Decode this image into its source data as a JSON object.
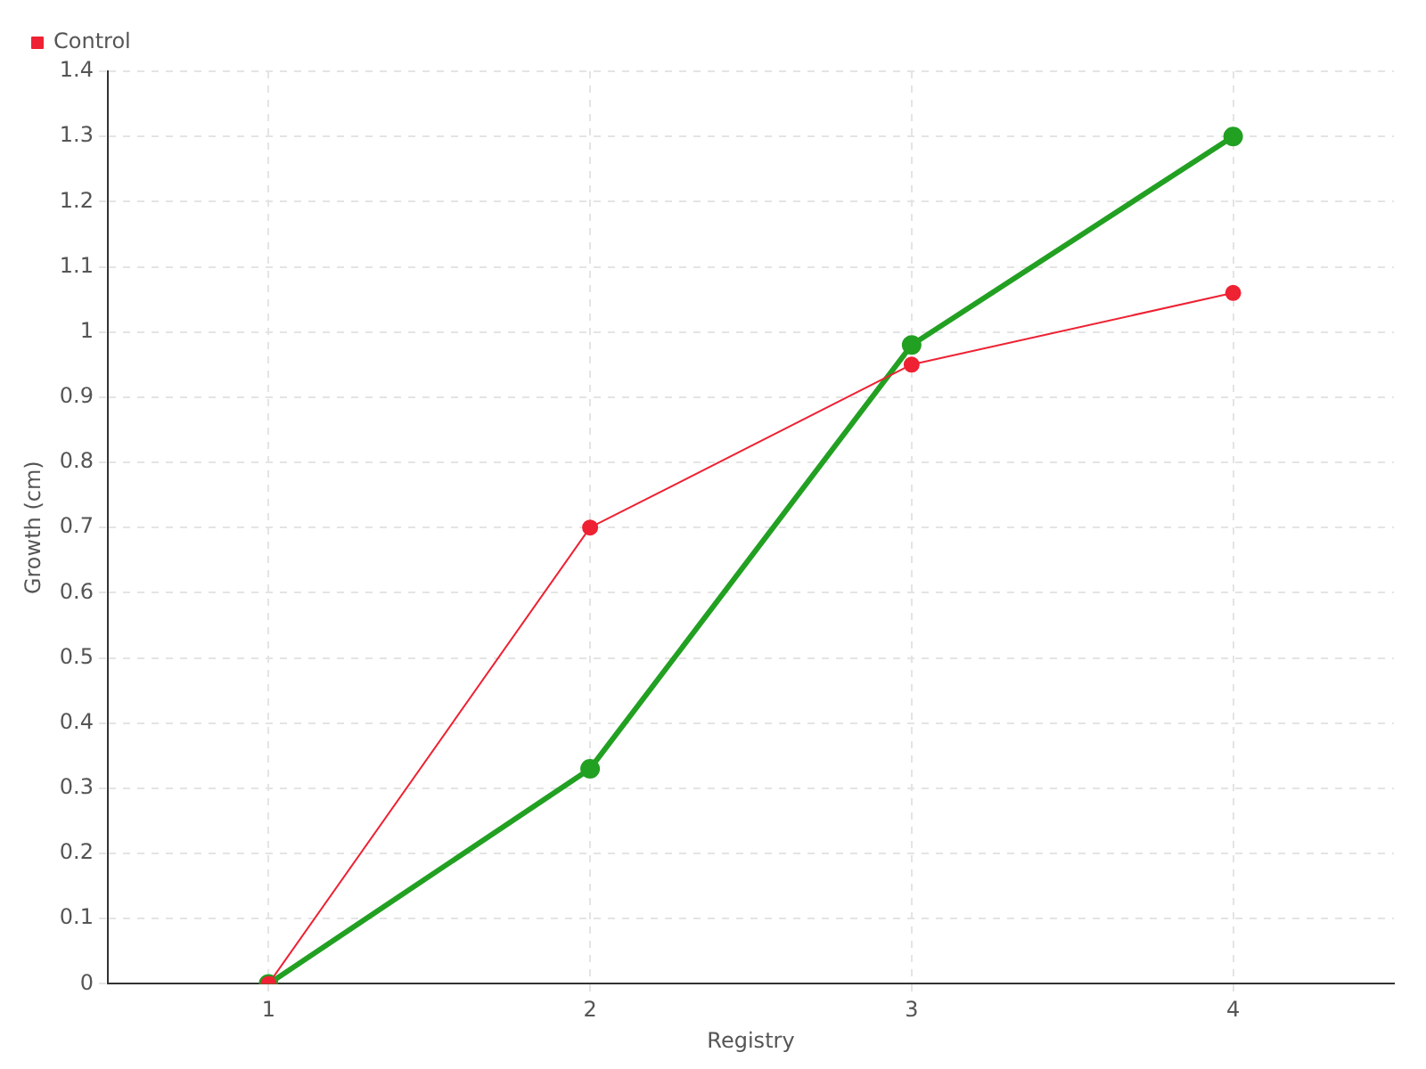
{
  "chart_data": {
    "type": "line",
    "xlabel": "Registry",
    "ylabel": "Growth (cm)",
    "x": [
      1,
      2,
      3,
      4
    ],
    "xlim": [
      0.5,
      4.5
    ],
    "xticks": [
      1,
      2,
      3,
      4
    ],
    "ylim": [
      0,
      1.4
    ],
    "yticks": [
      0,
      0.1,
      0.2,
      0.3,
      0.4,
      0.5,
      0.6,
      0.7,
      0.8,
      0.9,
      1,
      1.1,
      1.2,
      1.3,
      1.4
    ],
    "series": [
      {
        "color": "#22a022",
        "values": [
          0,
          0.33,
          0.98,
          1.3
        ]
      },
      {
        "name": "Control",
        "color": "#ee2233",
        "values": [
          0,
          0.7,
          0.95,
          1.06
        ]
      }
    ],
    "grid": true,
    "legend": "top left",
    "marker": "circle",
    "line_style": "solid"
  }
}
